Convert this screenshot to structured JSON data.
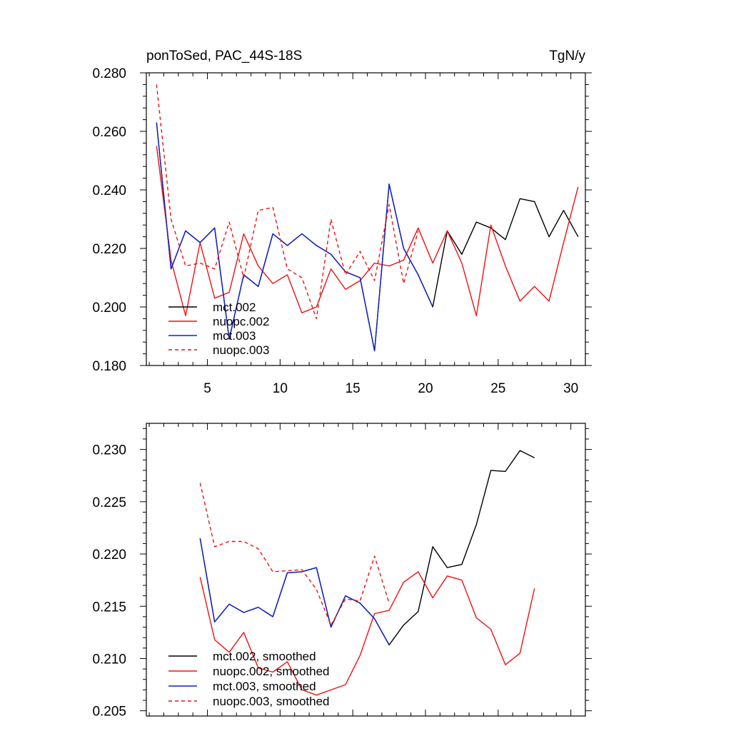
{
  "header": {
    "title_left": "ponToSed, PAC_44S-18S",
    "title_right": "TgN/y"
  },
  "chart_data": [
    {
      "type": "line",
      "x_tick_labels": [
        "5",
        "10",
        "15",
        "20",
        "25",
        "30"
      ],
      "x_ticks": [
        5,
        10,
        15,
        20,
        25,
        30
      ],
      "xlim": [
        0.8,
        31
      ],
      "ylim": [
        0.18,
        0.28
      ],
      "y_ticks": [
        0.18,
        0.2,
        0.22,
        0.24,
        0.26,
        0.28
      ],
      "y_tick_labels": [
        "0.180",
        "0.200",
        "0.220",
        "0.240",
        "0.260",
        "0.280"
      ],
      "legend_position": "lower-left",
      "series": [
        {
          "name": "mct.002",
          "color": "#000000",
          "dash": "solid",
          "x": [
            1.5,
            2.5,
            3.5,
            4.5,
            5.5,
            6.5,
            7.5,
            8.5,
            9.5,
            10.5,
            11.5,
            12.5,
            13.5,
            14.5,
            15.5,
            16.5,
            17.5,
            18.5,
            19.5,
            20.5,
            21.5,
            22.5,
            23.5,
            24.5,
            25.5,
            26.5,
            27.5,
            28.5,
            29.5,
            30.5
          ],
          "values": [
            0.263,
            0.213,
            0.226,
            0.222,
            0.227,
            0.189,
            0.211,
            0.207,
            0.225,
            0.221,
            0.225,
            0.221,
            0.218,
            0.212,
            0.21,
            0.185,
            0.242,
            0.22,
            0.211,
            0.2,
            0.226,
            0.218,
            0.229,
            0.227,
            0.223,
            0.237,
            0.236,
            0.224,
            0.233,
            0.224
          ]
        },
        {
          "name": "nuopc.002",
          "color": "#ee1111",
          "dash": "solid",
          "x": [
            1.5,
            2.5,
            3.5,
            4.5,
            5.5,
            6.5,
            7.5,
            8.5,
            9.5,
            10.5,
            11.5,
            12.5,
            13.5,
            14.5,
            15.5,
            16.5,
            17.5,
            18.5,
            19.5,
            20.5,
            21.5,
            22.5,
            23.5,
            24.5,
            25.5,
            26.5,
            27.5,
            28.5,
            29.5,
            30.5
          ],
          "values": [
            0.255,
            0.216,
            0.197,
            0.222,
            0.203,
            0.205,
            0.225,
            0.214,
            0.208,
            0.211,
            0.198,
            0.2,
            0.213,
            0.206,
            0.209,
            0.215,
            0.214,
            0.216,
            0.227,
            0.215,
            0.226,
            0.215,
            0.197,
            0.228,
            0.214,
            0.202,
            0.207,
            0.202,
            0.222,
            0.241
          ]
        },
        {
          "name": "mct.003",
          "color": "#1122cc",
          "dash": "solid",
          "x": [
            1.5,
            2.5,
            3.5,
            4.5,
            5.5,
            6.5,
            7.5,
            8.5,
            9.5,
            10.5,
            11.5,
            12.5,
            13.5,
            14.5,
            15.5,
            16.5,
            17.5,
            18.5,
            19.5,
            20.5
          ],
          "values": [
            0.263,
            0.213,
            0.226,
            0.222,
            0.227,
            0.189,
            0.211,
            0.207,
            0.225,
            0.221,
            0.225,
            0.221,
            0.218,
            0.212,
            0.21,
            0.185,
            0.242,
            0.22,
            0.211,
            0.2
          ]
        },
        {
          "name": "nuopc.003",
          "color": "#ee1111",
          "dash": "dashed",
          "x": [
            1.5,
            2.5,
            3.5,
            4.5,
            5.5,
            6.5,
            7.5,
            8.5,
            9.5,
            10.5,
            11.5,
            12.5,
            13.5,
            14.5,
            15.5,
            16.5,
            17.5,
            18.5,
            19.5
          ],
          "values": [
            0.276,
            0.23,
            0.214,
            0.215,
            0.213,
            0.229,
            0.21,
            0.233,
            0.234,
            0.213,
            0.21,
            0.196,
            0.23,
            0.211,
            0.219,
            0.209,
            0.235,
            0.208,
            0.226
          ]
        }
      ]
    },
    {
      "type": "line",
      "x_ticks": [
        5,
        10,
        15,
        20,
        25,
        30
      ],
      "xlim": [
        0.8,
        31
      ],
      "ylim": [
        0.2045,
        0.2325
      ],
      "y_ticks": [
        0.205,
        0.21,
        0.215,
        0.22,
        0.225,
        0.23
      ],
      "y_tick_labels": [
        "0.205",
        "0.210",
        "0.215",
        "0.220",
        "0.225",
        "0.230"
      ],
      "legend_position": "lower-left",
      "series": [
        {
          "name": "mct.002, smoothed",
          "color": "#000000",
          "dash": "solid",
          "x": [
            4.5,
            5.5,
            6.5,
            7.5,
            8.5,
            9.5,
            10.5,
            11.5,
            12.5,
            13.5,
            14.5,
            15.5,
            16.5,
            17.5,
            18.5,
            19.5,
            20.5,
            21.5,
            22.5,
            23.5,
            24.5,
            25.5,
            26.5,
            27.5
          ],
          "values": [
            0.2215,
            0.2135,
            0.2152,
            0.2144,
            0.2149,
            0.214,
            0.2182,
            0.2183,
            0.2187,
            0.213,
            0.216,
            0.2153,
            0.2138,
            0.2113,
            0.2132,
            0.2145,
            0.2207,
            0.2187,
            0.219,
            0.2228,
            0.228,
            0.2279,
            0.2299,
            0.2292
          ]
        },
        {
          "name": "nuopc.002, smoothed",
          "color": "#ee1111",
          "dash": "solid",
          "x": [
            4.5,
            5.5,
            6.5,
            7.5,
            8.5,
            9.5,
            10.5,
            11.5,
            12.5,
            13.5,
            14.5,
            15.5,
            16.5,
            17.5,
            18.5,
            19.5,
            20.5,
            21.5,
            22.5,
            23.5,
            24.5,
            25.5,
            26.5,
            27.5
          ],
          "values": [
            0.2178,
            0.2118,
            0.2106,
            0.2125,
            0.2091,
            0.2087,
            0.2097,
            0.207,
            0.2065,
            0.207,
            0.2075,
            0.2103,
            0.2143,
            0.2146,
            0.2173,
            0.2183,
            0.2158,
            0.2179,
            0.2175,
            0.2139,
            0.2128,
            0.2094,
            0.2105,
            0.2167
          ]
        },
        {
          "name": "mct.003, smoothed",
          "color": "#1122cc",
          "dash": "solid",
          "x": [
            4.5,
            5.5,
            6.5,
            7.5,
            8.5,
            9.5,
            10.5,
            11.5,
            12.5,
            13.5,
            14.5,
            15.5,
            16.5,
            17.5
          ],
          "values": [
            0.2215,
            0.2135,
            0.2152,
            0.2144,
            0.2149,
            0.214,
            0.2182,
            0.2183,
            0.2187,
            0.213,
            0.216,
            0.2153,
            0.2138,
            0.2113
          ]
        },
        {
          "name": "nuopc.003, smoothed",
          "color": "#ee1111",
          "dash": "dashed",
          "x": [
            4.5,
            5.5,
            6.5,
            7.5,
            8.5,
            9.5,
            10.5,
            11.5,
            12.5,
            13.5,
            14.5,
            15.5,
            16.5,
            17.5
          ],
          "values": [
            0.2268,
            0.2207,
            0.2212,
            0.2212,
            0.2205,
            0.2183,
            0.2184,
            0.2185,
            0.2166,
            0.2132,
            0.2157,
            0.2155,
            0.2198,
            0.2153
          ]
        }
      ]
    }
  ]
}
